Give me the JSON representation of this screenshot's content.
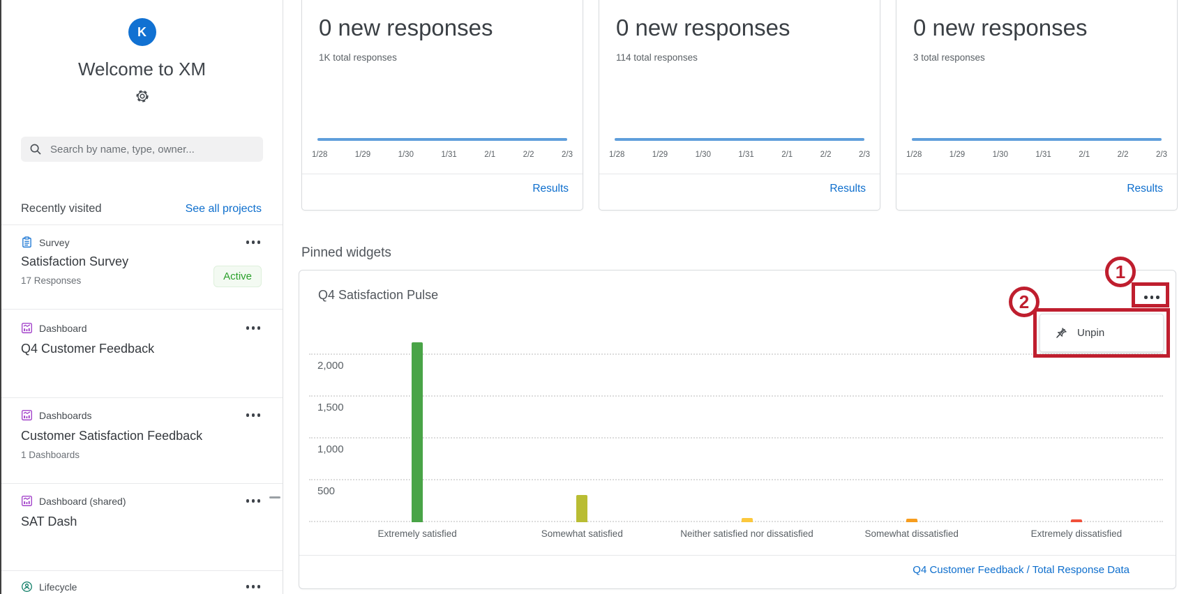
{
  "sidebar": {
    "avatar_initial": "K",
    "welcome_title": "Welcome to XM",
    "search_placeholder": "Search by name, type, owner...",
    "recently_visited_label": "Recently visited",
    "see_all_projects_label": "See all projects",
    "projects": [
      {
        "type": "Survey",
        "title": "Satisfaction Survey",
        "meta": "17 Responses",
        "badge": "Active"
      },
      {
        "type": "Dashboard",
        "title": "Q4 Customer Feedback"
      },
      {
        "type": "Dashboards",
        "title": "Customer Satisfaction Feedback",
        "meta": "1 Dashboards"
      },
      {
        "type": "Dashboard (shared)",
        "title": "SAT Dash"
      },
      {
        "type": "Lifecycle"
      }
    ]
  },
  "response_cards": [
    {
      "headline": "0 new responses",
      "subtitle": "1K total responses",
      "dates": [
        "1/28",
        "1/29",
        "1/30",
        "1/31",
        "2/1",
        "2/2",
        "2/3"
      ],
      "link_label": "Results"
    },
    {
      "headline": "0 new responses",
      "subtitle": "114 total responses",
      "dates": [
        "1/28",
        "1/29",
        "1/30",
        "1/31",
        "2/1",
        "2/2",
        "2/3"
      ],
      "link_label": "Results"
    },
    {
      "headline": "0 new responses",
      "subtitle": "3 total responses",
      "dates": [
        "1/28",
        "1/29",
        "1/30",
        "1/31",
        "2/1",
        "2/2",
        "2/3"
      ],
      "link_label": "Results"
    }
  ],
  "pinned": {
    "section_title": "Pinned widgets",
    "widget_title": "Q4 Satisfaction Pulse",
    "menu_items": [
      {
        "label": "Unpin"
      }
    ],
    "footer_link": "Q4 Customer Feedback / Total Response Data"
  },
  "annotations": {
    "step_1": "1",
    "step_2": "2",
    "highlight_color": "#bf1e2e"
  },
  "colors": {
    "link_blue": "#0d6ecd",
    "avatar_blue": "#1171d2",
    "sparkline_blue": "#5f9edb",
    "active_badge_green": "#2ba02b"
  },
  "chart_data": {
    "type": "bar",
    "title": "Q4 Satisfaction Pulse",
    "categories": [
      "Extremely satisfied",
      "Somewhat satisfied",
      "Neither satisfied nor dissatisfied",
      "Somewhat dissatisfied",
      "Extremely dissatisfied"
    ],
    "values": [
      2150,
      325,
      50,
      40,
      30
    ],
    "bar_colors": [
      "#49a447",
      "#b9bd33",
      "#fcc83d",
      "#f79d1e",
      "#f0503a"
    ],
    "ylim": [
      0,
      2500
    ],
    "yticks": [
      {
        "value": 500,
        "label": "500"
      },
      {
        "value": 1000,
        "label": "1,000"
      },
      {
        "value": 1500,
        "label": "1,500"
      },
      {
        "value": 2000,
        "label": "2,000"
      }
    ],
    "xlabel": "",
    "ylabel": "",
    "grid": "horizontal-dotted",
    "legend": "none",
    "source_link": "Q4 Customer Feedback / Total Response Data"
  }
}
